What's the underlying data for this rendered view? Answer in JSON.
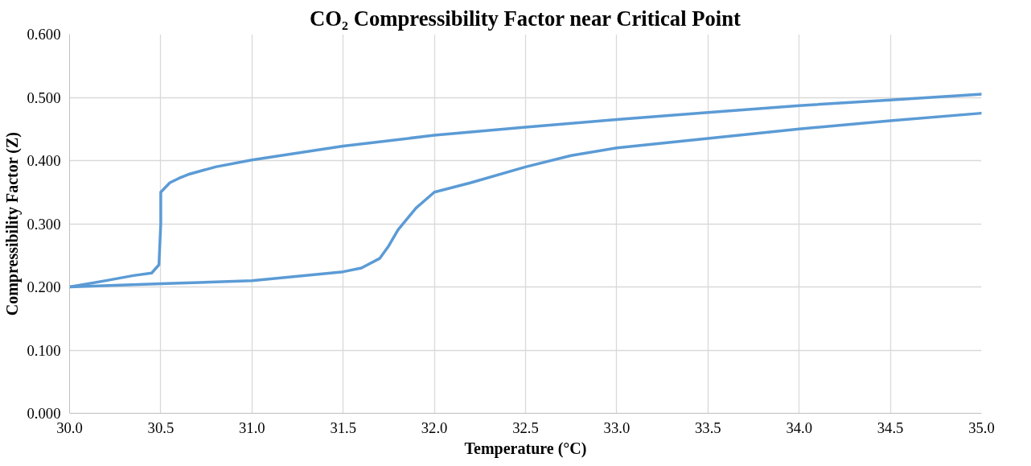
{
  "chart_data": {
    "type": "line",
    "title": "CO₂ Compressibility Factor near Critical Point",
    "xlabel": "Temperature (°C)",
    "ylabel": "Compressibility Factor (Z)",
    "xlim": [
      30,
      35
    ],
    "ylim": [
      0,
      0.6
    ],
    "xticks": [
      {
        "value": 30,
        "label": "30.0"
      },
      30.5,
      {
        "value": 31,
        "label": "31.0"
      },
      31.5,
      {
        "value": 32,
        "label": "32.0"
      },
      32.5,
      {
        "value": 33,
        "label": "33.0"
      },
      33.5,
      {
        "value": 34,
        "label": "34.0"
      },
      34.5,
      {
        "value": 35,
        "label": "35.0"
      }
    ],
    "yticks": [
      {
        "value": 0,
        "label": "0.000"
      },
      {
        "value": 0.1,
        "label": "0.100"
      },
      {
        "value": 0.2,
        "label": "0.200"
      },
      {
        "value": 0.3,
        "label": "0.300"
      },
      {
        "value": 0.4,
        "label": "0.400"
      },
      {
        "value": 0.5,
        "label": "0.500"
      },
      {
        "value": 0.6,
        "label": "0.600"
      }
    ],
    "grid": true,
    "marker": "none",
    "line_style": "solid",
    "series": [
      {
        "color": "#5b9bd5",
        "x": [
          30,
          30.2,
          30.35,
          30.45,
          30.49,
          30.5,
          30.5,
          30.55,
          30.6,
          30.65,
          30.8,
          31,
          31.5,
          32,
          32.5,
          33,
          33.5,
          34,
          34.5,
          35
        ],
        "values": [
          0.2,
          0.21,
          0.218,
          0.222,
          0.235,
          0.3,
          0.35,
          0.365,
          0.372,
          0.378,
          0.39,
          0.401,
          0.423,
          0.44,
          0.453,
          0.465,
          0.476,
          0.487,
          0.496,
          0.505
        ]
      },
      {
        "color": "#5b9bd5",
        "x": [
          30,
          30.5,
          31,
          31.5,
          31.6,
          31.7,
          31.75,
          31.8,
          31.9,
          32,
          32.2,
          32.5,
          32.75,
          33,
          33.5,
          34,
          34.5,
          35
        ],
        "values": [
          0.2,
          0.205,
          0.21,
          0.224,
          0.23,
          0.245,
          0.265,
          0.29,
          0.325,
          0.35,
          0.365,
          0.39,
          0.408,
          0.42,
          0.435,
          0.45,
          0.463,
          0.475
        ]
      }
    ]
  }
}
